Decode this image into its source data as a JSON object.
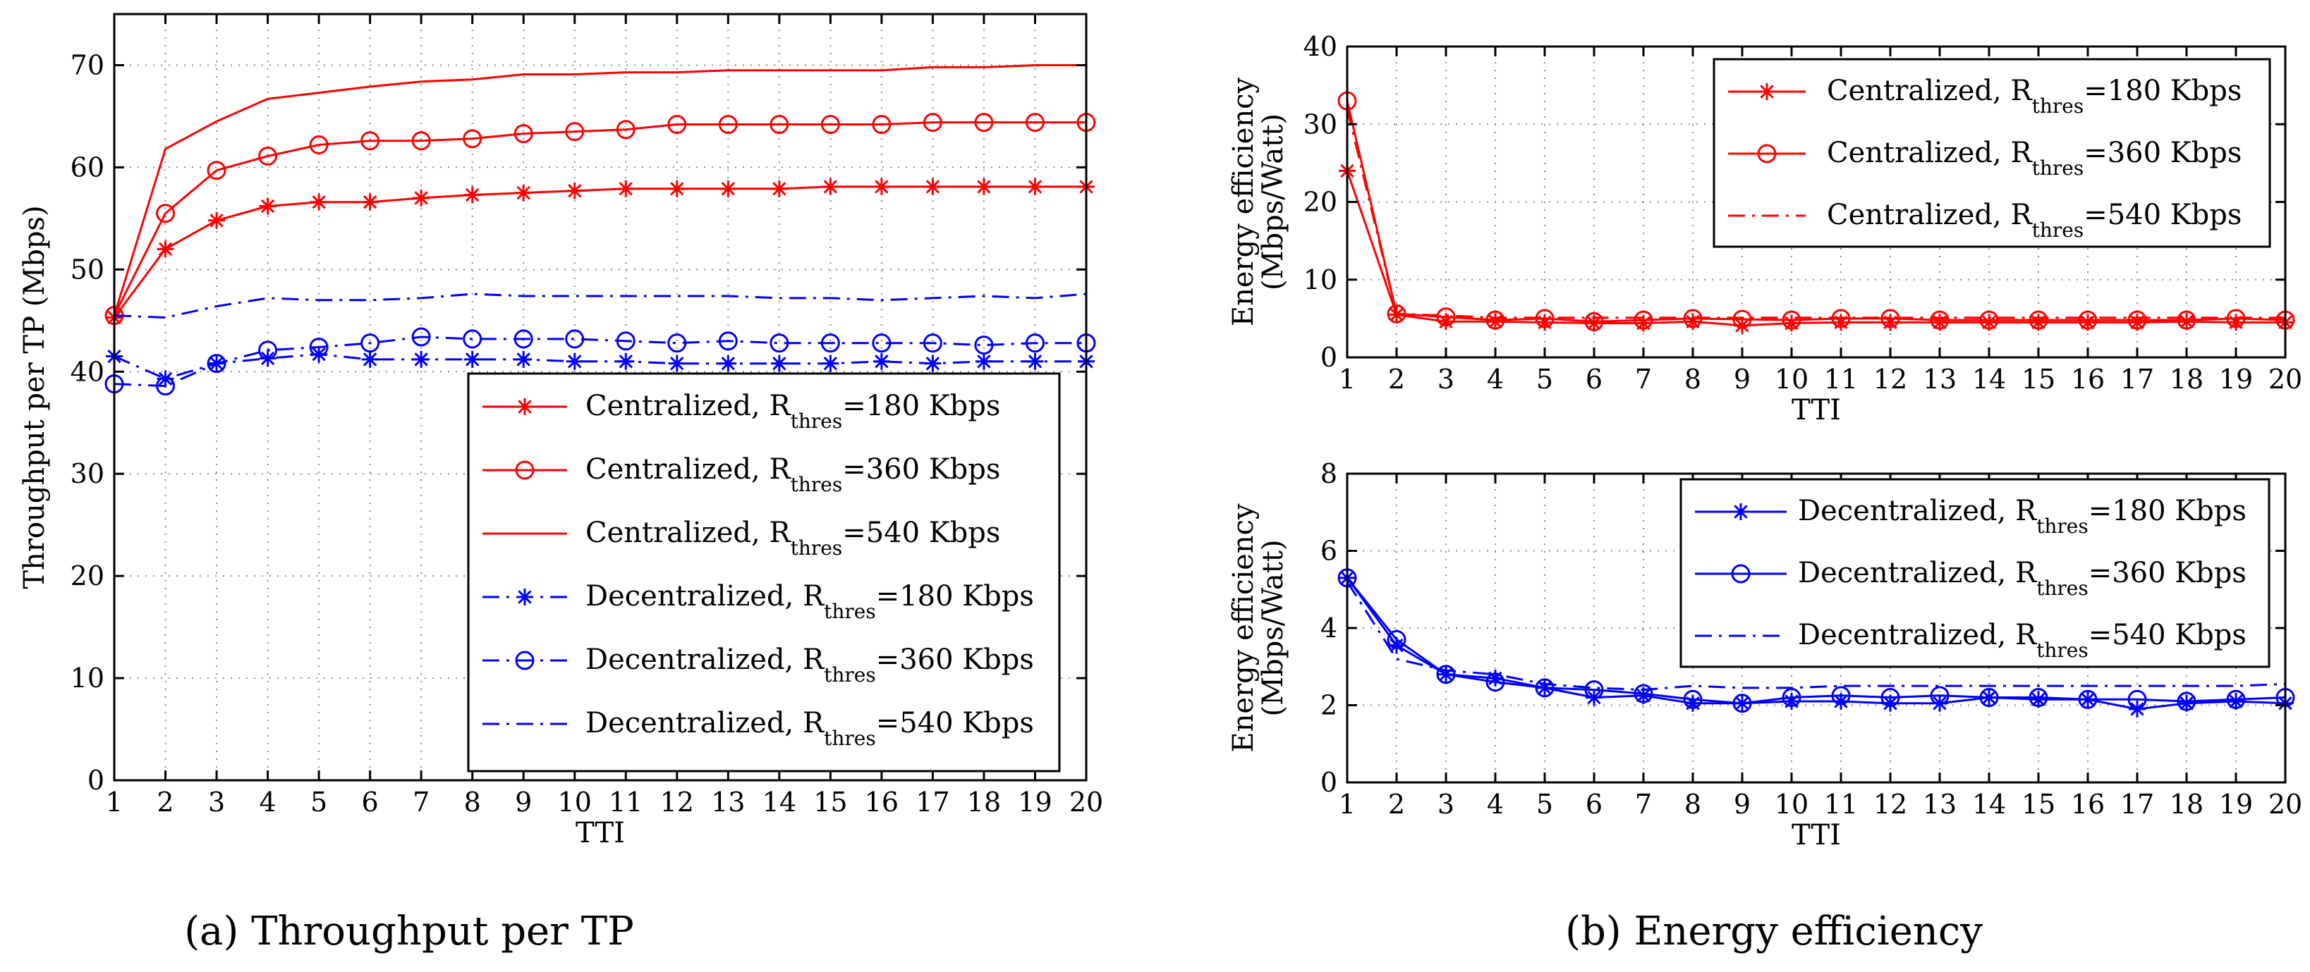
{
  "colors": {
    "red": "#ff0000",
    "blue": "#0000ff"
  },
  "captions": {
    "a": "(a)  Throughput per TP",
    "b": "(b)  Energy efficiency"
  },
  "chart_data": [
    {
      "id": "throughput",
      "type": "line",
      "title": "",
      "xlabel": "TTI",
      "ylabel": "Throughput per TP (Mbps)",
      "xlim": [
        1,
        20
      ],
      "ylim": [
        0,
        75
      ],
      "xticks": [
        1,
        2,
        3,
        4,
        5,
        6,
        7,
        8,
        9,
        10,
        11,
        12,
        13,
        14,
        15,
        16,
        17,
        18,
        19,
        20
      ],
      "yticks": [
        0,
        10,
        20,
        30,
        40,
        50,
        60,
        70
      ],
      "grid": true,
      "legend_position": "bottom-right",
      "x": [
        1,
        2,
        3,
        4,
        5,
        6,
        7,
        8,
        9,
        10,
        11,
        12,
        13,
        14,
        15,
        16,
        17,
        18,
        19,
        20
      ],
      "series": [
        {
          "label": "Centralized, R",
          "sub": "thres",
          "suffix": "=180 Kbps",
          "color": "#ff0000",
          "marker": "star",
          "line": "solid",
          "values": [
            45.3,
            52.0,
            54.8,
            56.2,
            56.6,
            56.6,
            57.0,
            57.3,
            57.5,
            57.7,
            57.9,
            57.9,
            57.9,
            57.9,
            58.1,
            58.1,
            58.1,
            58.1,
            58.1,
            58.1
          ]
        },
        {
          "label": "Centralized, R",
          "sub": "thres",
          "suffix": "=360 Kbps",
          "color": "#ff0000",
          "marker": "circle",
          "line": "solid",
          "values": [
            45.5,
            55.5,
            59.7,
            61.1,
            62.2,
            62.6,
            62.6,
            62.8,
            63.3,
            63.5,
            63.7,
            64.2,
            64.2,
            64.2,
            64.2,
            64.2,
            64.4,
            64.4,
            64.4,
            64.4
          ]
        },
        {
          "label": "Centralized, R",
          "sub": "thres",
          "suffix": "=540 Kbps",
          "color": "#ff0000",
          "marker": "none",
          "line": "solid",
          "values": [
            45.5,
            61.8,
            64.5,
            66.7,
            67.3,
            67.9,
            68.4,
            68.6,
            69.1,
            69.1,
            69.3,
            69.3,
            69.5,
            69.5,
            69.5,
            69.5,
            69.8,
            69.8,
            70.0,
            70.0
          ]
        },
        {
          "label": "Decentralized, R",
          "sub": "thres",
          "suffix": "=180 Kbps",
          "color": "#0000ff",
          "marker": "star",
          "line": "dashdot",
          "values": [
            41.5,
            39.3,
            40.8,
            41.3,
            41.7,
            41.2,
            41.2,
            41.2,
            41.2,
            41.0,
            41.0,
            40.8,
            40.8,
            40.8,
            40.8,
            41.0,
            40.8,
            41.0,
            41.0,
            41.0
          ]
        },
        {
          "label": "Decentralized, R",
          "sub": "thres",
          "suffix": "=360 Kbps",
          "color": "#0000ff",
          "marker": "circle",
          "line": "dashdot",
          "values": [
            38.8,
            38.6,
            40.8,
            42.1,
            42.4,
            42.8,
            43.4,
            43.2,
            43.2,
            43.2,
            43.0,
            42.8,
            43.0,
            42.8,
            42.8,
            42.8,
            42.8,
            42.6,
            42.8,
            42.8
          ]
        },
        {
          "label": "Decentralized, R",
          "sub": "thres",
          "suffix": "=540 Kbps",
          "color": "#0000ff",
          "marker": "none",
          "line": "dashdot",
          "values": [
            45.5,
            45.3,
            46.4,
            47.2,
            47.0,
            47.0,
            47.2,
            47.6,
            47.4,
            47.4,
            47.4,
            47.4,
            47.4,
            47.2,
            47.2,
            47.0,
            47.2,
            47.4,
            47.2,
            47.6
          ]
        }
      ]
    },
    {
      "id": "ee_centralized",
      "type": "line",
      "title": "",
      "xlabel": "TTI",
      "ylabel": [
        "Energy efficiency",
        "(Mbps/Watt)"
      ],
      "xlim": [
        1,
        20
      ],
      "ylim": [
        0,
        40
      ],
      "xticks": [
        1,
        2,
        3,
        4,
        5,
        6,
        7,
        8,
        9,
        10,
        11,
        12,
        13,
        14,
        15,
        16,
        17,
        18,
        19,
        20
      ],
      "yticks": [
        0,
        10,
        20,
        30,
        40
      ],
      "grid": true,
      "legend_position": "top-right",
      "x": [
        1,
        2,
        3,
        4,
        5,
        6,
        7,
        8,
        9,
        10,
        11,
        12,
        13,
        14,
        15,
        16,
        17,
        18,
        19,
        20
      ],
      "series": [
        {
          "label": "Centralized, R",
          "sub": "thres",
          "suffix": "=180 Kbps",
          "color": "#ff0000",
          "marker": "star",
          "line": "solid",
          "values": [
            24.0,
            5.5,
            4.6,
            4.6,
            4.5,
            4.4,
            4.4,
            4.6,
            4.1,
            4.4,
            4.5,
            4.5,
            4.5,
            4.5,
            4.5,
            4.5,
            4.5,
            4.6,
            4.5,
            4.5
          ]
        },
        {
          "label": "Centralized, R",
          "sub": "thres",
          "suffix": "=360 Kbps",
          "color": "#ff0000",
          "marker": "circle",
          "line": "solid",
          "values": [
            33.0,
            5.6,
            5.2,
            4.8,
            5.0,
            4.6,
            4.8,
            5.0,
            4.9,
            4.8,
            5.0,
            5.0,
            4.8,
            4.8,
            4.8,
            4.8,
            4.8,
            4.8,
            5.0,
            4.8
          ]
        },
        {
          "label": "Centralized, R",
          "sub": "thres",
          "suffix": "=540 Kbps",
          "color": "#ff0000",
          "marker": "none",
          "line": "dashdot",
          "values": [
            32.0,
            5.6,
            5.4,
            5.1,
            5.1,
            5.1,
            5.1,
            5.1,
            5.1,
            5.1,
            5.1,
            5.1,
            5.1,
            5.1,
            5.1,
            5.1,
            5.1,
            5.1,
            5.1,
            5.1
          ]
        }
      ]
    },
    {
      "id": "ee_decentralized",
      "type": "line",
      "title": "",
      "xlabel": "TTI",
      "ylabel": [
        "Energy efficiency",
        "(Mbps/Watt)"
      ],
      "xlim": [
        1,
        20
      ],
      "ylim": [
        0,
        8
      ],
      "xticks": [
        1,
        2,
        3,
        4,
        5,
        6,
        7,
        8,
        9,
        10,
        11,
        12,
        13,
        14,
        15,
        16,
        17,
        18,
        19,
        20
      ],
      "yticks": [
        0,
        2,
        4,
        6,
        8
      ],
      "grid": true,
      "legend_position": "top-right",
      "x": [
        1,
        2,
        3,
        4,
        5,
        6,
        7,
        8,
        9,
        10,
        11,
        12,
        13,
        14,
        15,
        16,
        17,
        18,
        19,
        20
      ],
      "series": [
        {
          "label": "Decentralized, R",
          "sub": "thres",
          "suffix": "=180 Kbps",
          "color": "#0000ff",
          "marker": "star",
          "line": "solid",
          "values": [
            5.3,
            3.55,
            2.8,
            2.7,
            2.45,
            2.2,
            2.25,
            2.05,
            2.05,
            2.1,
            2.1,
            2.05,
            2.05,
            2.2,
            2.15,
            2.15,
            1.9,
            2.05,
            2.1,
            2.05
          ]
        },
        {
          "label": "Decentralized, R",
          "sub": "thres",
          "suffix": "=360 Kbps",
          "color": "#0000ff",
          "marker": "circle",
          "line": "solid",
          "values": [
            5.3,
            3.7,
            2.8,
            2.6,
            2.45,
            2.4,
            2.3,
            2.15,
            2.05,
            2.2,
            2.25,
            2.2,
            2.25,
            2.2,
            2.2,
            2.15,
            2.15,
            2.1,
            2.15,
            2.2
          ]
        },
        {
          "label": "Decentralized, R",
          "sub": "thres",
          "suffix": "=540 Kbps",
          "color": "#0000ff",
          "marker": "none",
          "line": "dashdot",
          "values": [
            5.2,
            3.2,
            2.9,
            2.8,
            2.55,
            2.45,
            2.4,
            2.5,
            2.45,
            2.45,
            2.5,
            2.5,
            2.5,
            2.5,
            2.5,
            2.5,
            2.5,
            2.5,
            2.5,
            2.55
          ]
        }
      ]
    }
  ]
}
